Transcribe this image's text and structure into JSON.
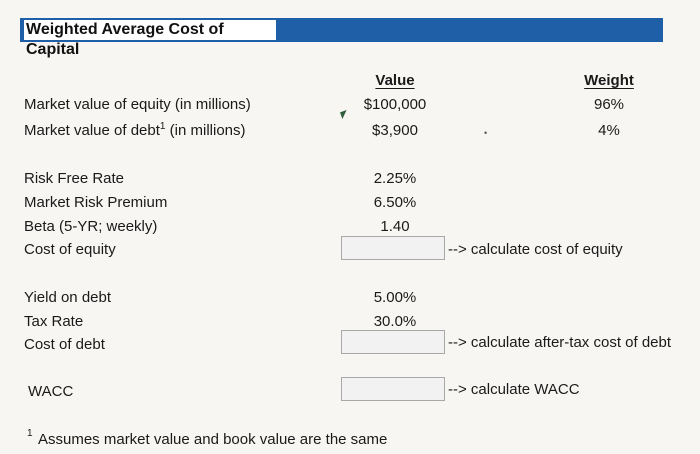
{
  "title": "Weighted Average Cost of Capital",
  "headers": {
    "value": "Value",
    "weight": "Weight"
  },
  "capital": {
    "equity": {
      "label_pre": "Market value of equity (in millions)",
      "value": "$100,000",
      "weight": "96%"
    },
    "debt": {
      "label_pre": "Market value of debt",
      "label_sup": "1",
      "label_post": " (in millions)",
      "value": "$3,900",
      "weight": "4%"
    }
  },
  "equity_inputs": {
    "risk_free": {
      "label": "Risk Free Rate",
      "value": "2.25%"
    },
    "risk_premium": {
      "label": "Market Risk Premium",
      "value": "6.50%"
    },
    "beta": {
      "label": "Beta (5-YR; weekly)",
      "value": "1.40"
    },
    "cost_of_equity": {
      "label": "Cost of equity",
      "value": "",
      "note": "--> calculate cost of equity"
    }
  },
  "debt_inputs": {
    "yield": {
      "label": "Yield on debt",
      "value": "5.00%"
    },
    "tax": {
      "label": "Tax Rate",
      "value": "30.0%"
    },
    "cost_of_debt": {
      "label": "Cost of debt",
      "value": "",
      "note": "--> calculate after-tax cost of debt"
    }
  },
  "wacc": {
    "label": "WACC",
    "value": "",
    "note": "--> calculate WACC"
  },
  "footnote": {
    "sup": "1",
    "text": "Assumes market value and book value are the same"
  }
}
